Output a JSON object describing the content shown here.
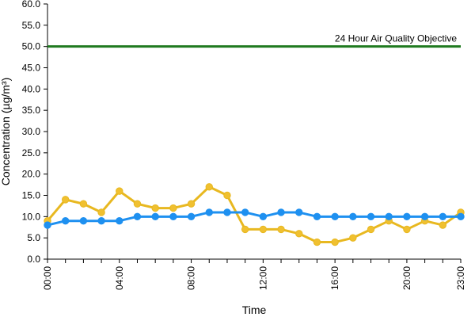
{
  "chart_data": {
    "type": "line",
    "xlabel": "Time",
    "ylabel": "Concentration (µg/m³)",
    "ylim": [
      0,
      60
    ],
    "y_ticks": [
      "0.0",
      "5.0",
      "10.0",
      "15.0",
      "20.0",
      "25.0",
      "30.0",
      "35.0",
      "40.0",
      "45.0",
      "50.0",
      "55.0",
      "60.0"
    ],
    "x_tick_labels": [
      {
        "hour": 0,
        "label": "00:00"
      },
      {
        "hour": 4,
        "label": "04:00"
      },
      {
        "hour": 8,
        "label": "08:00"
      },
      {
        "hour": 12,
        "label": "12:00"
      },
      {
        "hour": 16,
        "label": "16:00"
      },
      {
        "hour": 20,
        "label": "20:00"
      },
      {
        "hour": 23,
        "label": "23:00"
      }
    ],
    "x": [
      0,
      1,
      2,
      3,
      4,
      5,
      6,
      7,
      8,
      9,
      10,
      11,
      12,
      13,
      14,
      15,
      16,
      17,
      18,
      19,
      20,
      21,
      22,
      23
    ],
    "series": [
      {
        "color": "#f0c030",
        "line_color": "#e8b820",
        "values": [
          9,
          14,
          13,
          11,
          16,
          13,
          12,
          12,
          13,
          17,
          15,
          7,
          7,
          7,
          6,
          4,
          4,
          5,
          7,
          9,
          7,
          9,
          8,
          11
        ]
      },
      {
        "color": "#1e90f0",
        "line_color": "#1e90f0",
        "values": [
          8,
          9,
          9,
          9,
          9,
          10,
          10,
          10,
          10,
          11,
          11,
          11,
          10,
          11,
          11,
          10,
          10,
          10,
          10,
          10,
          10,
          10,
          10,
          10
        ]
      }
    ],
    "reference_line": {
      "value": 50,
      "label": "24 Hour Air Quality Objective",
      "color": "#1f7a1f"
    },
    "grid": false,
    "legend": "none"
  }
}
